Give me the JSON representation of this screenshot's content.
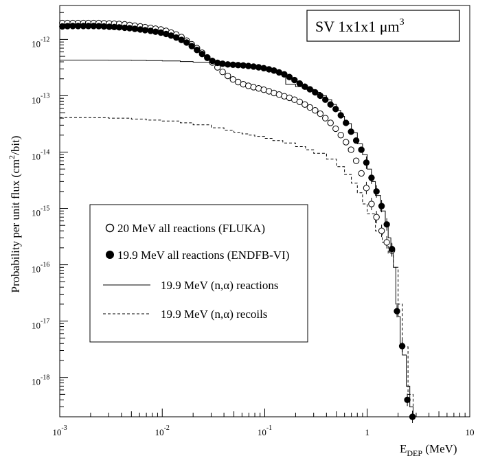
{
  "chart_data": {
    "type": "scatter",
    "title": "SV 1x1x1 μm",
    "title_superscript": "3",
    "xlabel": "E",
    "xlabel_subscript": "DEP",
    "xlabel_unit": " (MeV)",
    "ylabel": "Probability per unit flux (cm",
    "ylabel_superscript": "2",
    "ylabel_unit": "/bit)",
    "x_scale": "log",
    "y_scale": "log",
    "xlim": [
      0.001,
      10
    ],
    "ylim": [
      2e-19,
      4e-12
    ],
    "grid": false,
    "legend_position": "lower-left",
    "x_ticks": [
      {
        "value": 0.001,
        "base": "10",
        "exp": "-3"
      },
      {
        "value": 0.01,
        "base": "10",
        "exp": "-2"
      },
      {
        "value": 0.1,
        "base": "10",
        "exp": "-1"
      },
      {
        "value": 1,
        "base": "1",
        "exp": ""
      },
      {
        "value": 10,
        "base": "10",
        "exp": ""
      }
    ],
    "y_ticks": [
      {
        "value": 1e-12,
        "base": "10",
        "exp": "-12"
      },
      {
        "value": 1e-13,
        "base": "10",
        "exp": "-13"
      },
      {
        "value": 1e-14,
        "base": "10",
        "exp": "-14"
      },
      {
        "value": 1e-15,
        "base": "10",
        "exp": "-15"
      },
      {
        "value": 1e-16,
        "base": "10",
        "exp": "-16"
      },
      {
        "value": 1e-17,
        "base": "10",
        "exp": "-17"
      },
      {
        "value": 1e-18,
        "base": "10",
        "exp": "-18"
      }
    ],
    "series": [
      {
        "name": "20 MeV all reactions (FLUKA)",
        "style": "open-circle",
        "x": [
          0.00106,
          0.00119,
          0.00134,
          0.00151,
          0.0017,
          0.0019,
          0.00214,
          0.0024,
          0.0027,
          0.00304,
          0.0034,
          0.0038,
          0.0043,
          0.0048,
          0.0054,
          0.0061,
          0.0068,
          0.0077,
          0.0086,
          0.0097,
          0.0109,
          0.0122,
          0.0137,
          0.0154,
          0.0173,
          0.0194,
          0.0218,
          0.0245,
          0.0275,
          0.0308,
          0.0346,
          0.0388,
          0.0436,
          0.049,
          0.055,
          0.0617,
          0.0692,
          0.0777,
          0.0872,
          0.0979,
          0.11,
          0.123,
          0.138,
          0.155,
          0.174,
          0.195,
          0.219,
          0.246,
          0.276,
          0.31,
          0.348,
          0.39,
          0.438,
          0.492,
          0.552,
          0.62,
          0.695,
          0.78,
          0.876,
          0.98,
          1.1,
          1.23,
          1.38,
          1.55,
          1.74
        ],
        "y": [
          1.95e-12,
          1.95e-12,
          1.95e-12,
          1.95e-12,
          1.95e-12,
          1.95e-12,
          1.95e-12,
          1.95e-12,
          1.93e-12,
          1.92e-12,
          1.9e-12,
          1.88e-12,
          1.85e-12,
          1.8e-12,
          1.75e-12,
          1.7e-12,
          1.65e-12,
          1.6e-12,
          1.55e-12,
          1.5e-12,
          1.42e-12,
          1.32e-12,
          1.22e-12,
          1.1e-12,
          9.5e-13,
          8.2e-13,
          7e-13,
          5.8e-13,
          4.8e-13,
          3.9e-13,
          3.2e-13,
          2.65e-13,
          2.25e-13,
          1.95e-13,
          1.75e-13,
          1.6e-13,
          1.5e-13,
          1.42e-13,
          1.35e-13,
          1.28e-13,
          1.2e-13,
          1.12e-13,
          1.05e-13,
          9.8e-14,
          9.2e-14,
          8.5e-14,
          7.8e-14,
          7e-14,
          6.2e-14,
          5.5e-14,
          4.8e-14,
          4e-14,
          3.3e-14,
          2.6e-14,
          2e-14,
          1.5e-14,
          1.1e-14,
          7e-15,
          4.2e-15,
          2.3e-15,
          1.2e-15,
          7e-16,
          4e-16,
          2.5e-16,
          1.8e-16
        ]
      },
      {
        "name": "19.9 MeV all reactions (ENDFB-VI)",
        "style": "filled-circle",
        "x": [
          0.00106,
          0.00119,
          0.00134,
          0.00151,
          0.0017,
          0.0019,
          0.00214,
          0.0024,
          0.0027,
          0.00304,
          0.0034,
          0.0038,
          0.0043,
          0.0048,
          0.0054,
          0.0061,
          0.0068,
          0.0077,
          0.0086,
          0.0097,
          0.0109,
          0.0122,
          0.0137,
          0.0154,
          0.0173,
          0.0194,
          0.0218,
          0.0245,
          0.0275,
          0.0308,
          0.0346,
          0.0388,
          0.0436,
          0.049,
          0.055,
          0.0617,
          0.0692,
          0.0777,
          0.0872,
          0.0979,
          0.11,
          0.123,
          0.138,
          0.155,
          0.174,
          0.195,
          0.219,
          0.246,
          0.276,
          0.31,
          0.348,
          0.39,
          0.438,
          0.492,
          0.552,
          0.62,
          0.695,
          0.78,
          0.876,
          0.98,
          1.1,
          1.23,
          1.38,
          1.55,
          1.74,
          1.95,
          2.19,
          2.46,
          2.76
        ],
        "y": [
          1.7e-12,
          1.72e-12,
          1.73e-12,
          1.73e-12,
          1.73e-12,
          1.73e-12,
          1.73e-12,
          1.72e-12,
          1.7e-12,
          1.68e-12,
          1.66e-12,
          1.64e-12,
          1.61e-12,
          1.58e-12,
          1.54e-12,
          1.5e-12,
          1.46e-12,
          1.42e-12,
          1.37e-12,
          1.32e-12,
          1.25e-12,
          1.17e-12,
          1.08e-12,
          9.8e-13,
          8.8e-13,
          7.6e-13,
          6.5e-13,
          5.5e-13,
          4.7e-13,
          4.15e-13,
          3.85e-13,
          3.7e-13,
          3.6e-13,
          3.55e-13,
          3.5e-13,
          3.45e-13,
          3.38e-13,
          3.3e-13,
          3.2e-13,
          3.08e-13,
          2.95e-13,
          2.8e-13,
          2.6e-13,
          2.4e-13,
          2.15e-13,
          1.9e-13,
          1.65e-13,
          1.45e-13,
          1.3e-13,
          1.15e-13,
          1e-13,
          8.5e-14,
          7e-14,
          5.8e-14,
          4.5e-14,
          3.3e-14,
          2.3e-14,
          1.6e-14,
          1.1e-14,
          6.5e-15,
          3.5e-15,
          2e-15,
          1.1e-15,
          5.2e-16,
          1.9e-16,
          1.5e-17,
          3.6e-18,
          4e-19,
          2e-19
        ]
      },
      {
        "name": "19.9 MeV (n,α) reactions",
        "style": "solid",
        "x": [
          0.001,
          0.002,
          0.003,
          0.005,
          0.007,
          0.01,
          0.015,
          0.02,
          0.03,
          0.04,
          0.05,
          0.06,
          0.07,
          0.08,
          0.09,
          0.1,
          0.11,
          0.12,
          0.13,
          0.14,
          0.15,
          0.16,
          0.2,
          0.25,
          0.3,
          0.35,
          0.4,
          0.45,
          0.5,
          0.55,
          0.6,
          0.7,
          0.8,
          0.9,
          1,
          1.1,
          1.2,
          1.35,
          1.5,
          1.6,
          1.7,
          1.8,
          1.9,
          2,
          2.1,
          2.2,
          2.4,
          2.6,
          2.8
        ],
        "y": [
          4.3e-13,
          4.3e-13,
          4.28e-13,
          4.25e-13,
          4.2e-13,
          4.15e-13,
          4.05e-13,
          3.95e-13,
          3.75e-13,
          3.6e-13,
          3.45e-13,
          3.35e-13,
          3.25e-13,
          3.15e-13,
          3.05e-13,
          2.95e-13,
          2.85e-13,
          2.75e-13,
          2.65e-13,
          2.55e-13,
          2.45e-13,
          1.6e-13,
          1.45e-13,
          1.3e-13,
          1.15e-13,
          1e-13,
          8.5e-14,
          7e-14,
          5.5e-14,
          4.3e-14,
          3.2e-14,
          2.2e-14,
          1.4e-14,
          9e-15,
          5e-15,
          3e-15,
          1.7e-15,
          9e-16,
          5e-16,
          3e-16,
          1.8e-16,
          9e-17,
          2e-17,
          1.2e-17,
          4e-18,
          2.5e-18,
          7e-19,
          3e-19,
          2e-19
        ]
      },
      {
        "name": "19.9 MeV (n,α) recoils",
        "style": "dashed",
        "x": [
          0.001,
          0.002,
          0.003,
          0.005,
          0.007,
          0.01,
          0.015,
          0.02,
          0.03,
          0.04,
          0.05,
          0.06,
          0.07,
          0.08,
          0.1,
          0.12,
          0.15,
          0.2,
          0.25,
          0.3,
          0.4,
          0.5,
          0.6,
          0.7,
          0.8,
          0.9,
          1,
          1.2,
          1.4,
          1.6,
          1.8,
          2,
          2.2,
          2.5,
          2.8
        ],
        "y": [
          4.1e-14,
          4.08e-14,
          4e-14,
          3.85e-14,
          3.7e-14,
          3.55e-14,
          3.3e-14,
          3.05e-14,
          2.7e-14,
          2.45e-14,
          2.25e-14,
          2.1e-14,
          2e-14,
          1.9e-14,
          1.75e-14,
          1.6e-14,
          1.45e-14,
          1.25e-14,
          1.1e-14,
          9.5e-15,
          7.5e-15,
          5.5e-15,
          4e-15,
          2.8e-15,
          1.9e-15,
          1.2e-15,
          8e-16,
          4e-16,
          2.5e-16,
          1.6e-16,
          9e-17,
          2e-17,
          3.5e-18,
          5e-19,
          2e-19
        ]
      }
    ]
  }
}
